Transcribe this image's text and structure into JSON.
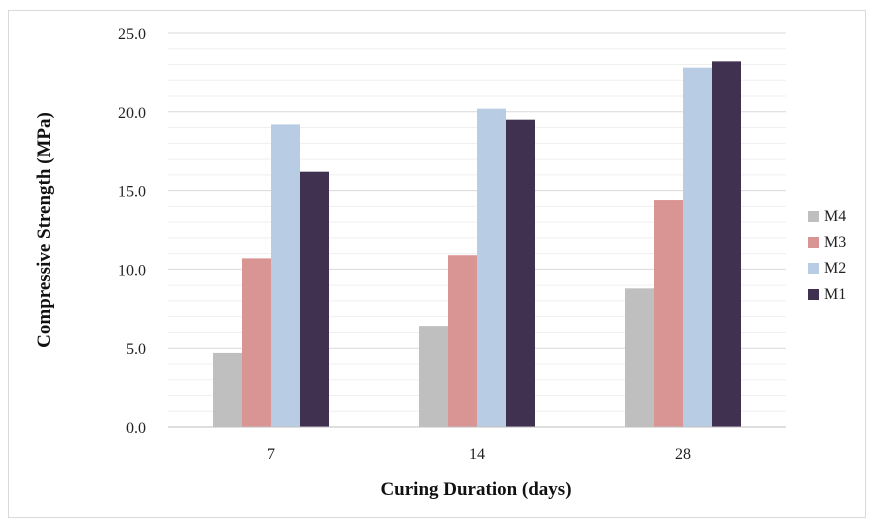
{
  "chart_data": {
    "type": "bar",
    "title": "",
    "xlabel": "Curing Duration (days)",
    "ylabel": "Compressive Strength (MPa)",
    "categories": [
      "7",
      "14",
      "28"
    ],
    "yticks": [
      "0.0",
      "5.0",
      "10.0",
      "15.0",
      "20.0",
      "25.0"
    ],
    "ylim": [
      0,
      25
    ],
    "minor_grid_step": 1,
    "grid": true,
    "legend": "right",
    "series": [
      {
        "name": "M4",
        "color": "#bfbfbf",
        "values": [
          4.7,
          6.4,
          8.8
        ]
      },
      {
        "name": "M3",
        "color": "#d99594",
        "values": [
          10.7,
          10.9,
          14.4
        ]
      },
      {
        "name": "M2",
        "color": "#b8cce4",
        "values": [
          19.2,
          20.2,
          22.8
        ]
      },
      {
        "name": "M1",
        "color": "#403151",
        "values": [
          16.2,
          19.5,
          23.2
        ]
      }
    ]
  }
}
